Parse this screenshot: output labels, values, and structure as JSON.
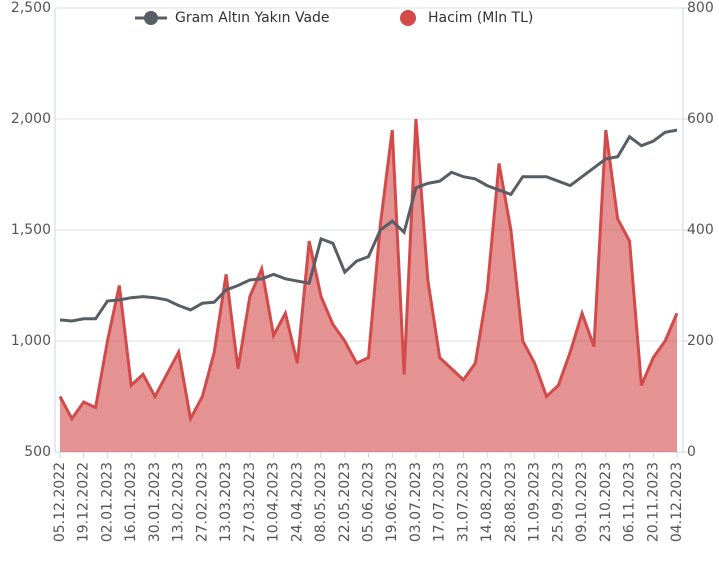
{
  "chart_data": {
    "type": "line",
    "legend": "top",
    "grid": true,
    "categories": [
      "05.12.2022",
      null,
      "19.12.2022",
      null,
      "02.01.2023",
      null,
      "16.01.2023",
      null,
      "30.01.2023",
      null,
      "13.02.2023",
      null,
      "27.02.2023",
      null,
      "13.03.2023",
      null,
      "27.03.2023",
      null,
      "10.04.2023",
      null,
      "24.04.2023",
      null,
      "08.05.2023",
      null,
      "22.05.2023",
      null,
      "05.06.2023",
      null,
      "19.06.2023",
      null,
      "03.07.2023",
      null,
      "17.07.2023",
      null,
      "31.07.2023",
      null,
      "14.08.2023",
      null,
      "28.08.2023",
      null,
      "11.09.2023",
      null,
      "25.09.2023",
      null,
      "09.10.2023",
      null,
      "23.10.2023",
      null,
      "06.11.2023",
      null,
      "20.11.2023",
      null,
      "04.12.2023"
    ],
    "ylim": [
      500,
      2500
    ],
    "yticks": [
      500,
      {
        "value": 1000,
        "label": "1,000"
      },
      {
        "value": 1500,
        "label": "1,500"
      },
      {
        "value": 2000,
        "label": "2,000"
      },
      {
        "value": 2500,
        "label": "2,500"
      }
    ],
    "y2lim": [
      0,
      800
    ],
    "y2ticks": [
      0,
      200,
      400,
      600,
      800
    ],
    "series": [
      {
        "name": "Gram Altın Yakın Vade",
        "color": "#595e66",
        "type": "line",
        "values": [
          1095,
          1090,
          1100,
          1100,
          1180,
          1185,
          1195,
          1200,
          1195,
          1185,
          1160,
          1140,
          1170,
          1175,
          1230,
          1250,
          1275,
          1280,
          1300,
          1280,
          1270,
          1260,
          1460,
          1440,
          1310,
          1360,
          1380,
          1500,
          1540,
          1490,
          1690,
          1710,
          1720,
          1760,
          1740,
          1730,
          1700,
          1680,
          1660,
          1740,
          1740,
          1740,
          1720,
          1700,
          1740,
          1780,
          1820,
          1830,
          1920,
          1880,
          1900,
          1940,
          1950
        ]
      },
      {
        "name": "Hacim (Mln TL)",
        "color": "#d24a4a",
        "type": "area",
        "axis": "y2",
        "values": [
          100,
          60,
          90,
          80,
          200,
          300,
          120,
          140,
          100,
          140,
          180,
          60,
          100,
          180,
          320,
          150,
          280,
          330,
          210,
          250,
          160,
          380,
          280,
          230,
          200,
          160,
          170,
          410,
          580,
          140,
          600,
          310,
          170,
          150,
          130,
          160,
          290,
          520,
          400,
          200,
          160,
          100,
          120,
          180,
          250,
          190,
          580,
          420,
          380,
          120,
          170,
          200,
          250
        ]
      }
    ]
  }
}
